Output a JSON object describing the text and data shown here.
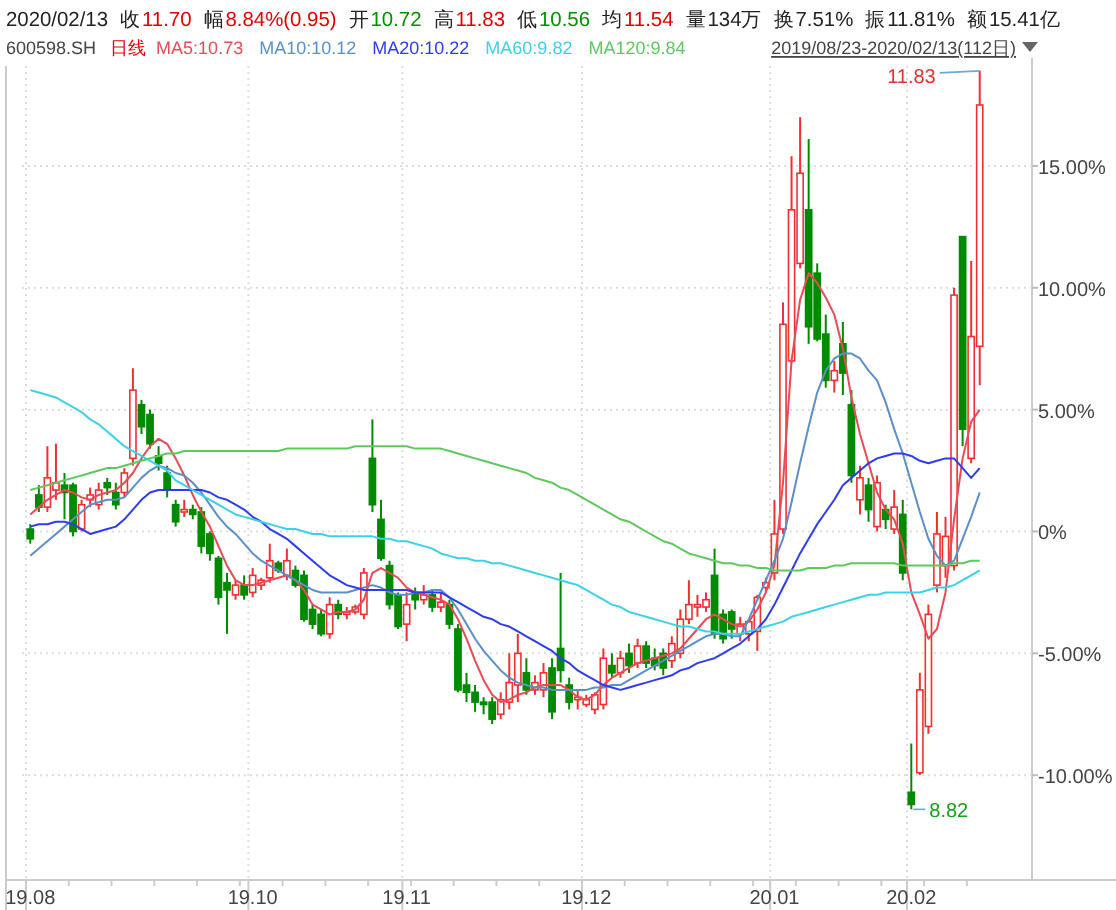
{
  "chart_data": {
    "type": "candlestick",
    "subtitle": "600598.SH",
    "legend_title": "日线",
    "legend": "top",
    "grid": true,
    "categories": [
      "19.08",
      null,
      null,
      null,
      null,
      null,
      null,
      null,
      null,
      null,
      null,
      null,
      null,
      null,
      null,
      null,
      null,
      null,
      null,
      null,
      null,
      null,
      null,
      null,
      null,
      null,
      "19.10",
      null,
      null,
      null,
      null,
      null,
      null,
      null,
      null,
      null,
      null,
      null,
      null,
      null,
      null,
      null,
      null,
      null,
      "19.11",
      null,
      null,
      null,
      null,
      null,
      null,
      null,
      null,
      null,
      null,
      null,
      null,
      null,
      null,
      null,
      null,
      null,
      null,
      null,
      null,
      "19.12",
      null,
      null,
      null,
      null,
      null,
      null,
      null,
      null,
      null,
      null,
      null,
      null,
      null,
      null,
      null,
      null,
      null,
      null,
      null,
      null,
      null,
      "20.01",
      null,
      null,
      null,
      null,
      null,
      null,
      null,
      null,
      null,
      null,
      null,
      null,
      null,
      null,
      null,
      "20.02",
      null,
      null,
      null,
      null,
      null,
      null,
      null,
      null
    ],
    "ohlc": [
      [
        0.1,
        0.3,
        -0.5,
        -0.3
      ],
      [
        1.5,
        1.9,
        0.8,
        1.0
      ],
      [
        1.0,
        3.5,
        0.8,
        2.2
      ],
      [
        1.7,
        3.6,
        1.3,
        2.0
      ],
      [
        1.9,
        2.4,
        0.5,
        1.6
      ],
      [
        1.9,
        2.0,
        -0.2,
        0.0
      ],
      [
        0.1,
        1.3,
        0.0,
        1.1
      ],
      [
        1.3,
        1.8,
        1.0,
        1.5
      ],
      [
        1.1,
        2.0,
        0.9,
        1.7
      ],
      [
        2.0,
        2.2,
        1.5,
        1.8
      ],
      [
        1.6,
        2.0,
        0.9,
        1.1
      ],
      [
        1.6,
        2.6,
        1.4,
        2.4
      ],
      [
        3.0,
        6.7,
        2.7,
        5.8
      ],
      [
        5.2,
        5.4,
        4.0,
        4.3
      ],
      [
        4.8,
        5.0,
        3.4,
        3.6
      ],
      [
        3.1,
        3.5,
        2.5,
        2.8
      ],
      [
        2.4,
        2.7,
        1.4,
        1.7
      ],
      [
        1.1,
        1.3,
        0.2,
        0.4
      ],
      [
        0.8,
        1.3,
        0.6,
        0.9
      ],
      [
        0.9,
        1.1,
        0.5,
        0.7
      ],
      [
        0.8,
        1.0,
        -0.9,
        -0.6
      ],
      [
        -0.1,
        0.0,
        -1.2,
        -0.9
      ],
      [
        -1.1,
        -1.0,
        -3.0,
        -2.7
      ],
      [
        -2.1,
        -1.7,
        -4.2,
        -2.4
      ],
      [
        -2.6,
        -2.0,
        -2.8,
        -2.2
      ],
      [
        -2.2,
        -1.8,
        -2.8,
        -2.6
      ],
      [
        -2.5,
        -1.5,
        -2.7,
        -1.8
      ],
      [
        -2.2,
        -1.9,
        -2.4,
        -2.0
      ],
      [
        -1.9,
        -0.5,
        -2.1,
        -1.2
      ],
      [
        -1.3,
        -1.2,
        -1.7,
        -1.6
      ],
      [
        -1.8,
        -0.7,
        -2.0,
        -1.2
      ],
      [
        -1.6,
        -1.4,
        -2.3,
        -2.2
      ],
      [
        -1.8,
        -1.6,
        -3.7,
        -3.6
      ],
      [
        -3.2,
        -3.0,
        -4.0,
        -3.8
      ],
      [
        -3.4,
        -3.2,
        -4.3,
        -4.2
      ],
      [
        -4.2,
        -2.7,
        -4.4,
        -3.0
      ],
      [
        -3.0,
        -2.8,
        -3.6,
        -3.4
      ],
      [
        -3.4,
        -3.1,
        -3.6,
        -3.3
      ],
      [
        -3.3,
        -3.0,
        -3.4,
        -3.1
      ],
      [
        -3.4,
        -1.5,
        -3.6,
        -1.7
      ],
      [
        3.0,
        4.6,
        0.8,
        1.1
      ],
      [
        0.5,
        1.3,
        -1.2,
        -1.1
      ],
      [
        -1.4,
        -1.2,
        -3.2,
        -3.0
      ],
      [
        -2.6,
        -2.5,
        -4.0,
        -3.9
      ],
      [
        -3.8,
        -2.5,
        -4.5,
        -3.0
      ],
      [
        -2.5,
        -2.3,
        -3.2,
        -2.8
      ],
      [
        -2.8,
        -2.2,
        -3.0,
        -2.6
      ],
      [
        -2.6,
        -2.4,
        -3.3,
        -3.1
      ],
      [
        -3.1,
        -2.5,
        -3.3,
        -2.9
      ],
      [
        -3.0,
        -2.8,
        -4.0,
        -3.8
      ],
      [
        -4.0,
        -3.8,
        -6.6,
        -6.5
      ],
      [
        -6.3,
        -5.8,
        -7.0,
        -6.6
      ],
      [
        -6.6,
        -6.3,
        -7.4,
        -7.0
      ],
      [
        -7.0,
        -6.8,
        -7.5,
        -7.1
      ],
      [
        -7.0,
        -6.8,
        -7.9,
        -7.7
      ],
      [
        -7.5,
        -6.6,
        -7.7,
        -6.9
      ],
      [
        -7.0,
        -5.0,
        -7.3,
        -6.2
      ],
      [
        -6.3,
        -4.2,
        -7.0,
        -5.0
      ],
      [
        -5.8,
        -5.2,
        -6.7,
        -6.5
      ],
      [
        -6.5,
        -5.9,
        -6.7,
        -6.2
      ],
      [
        -6.5,
        -5.4,
        -6.8,
        -5.8
      ],
      [
        -5.6,
        -5.2,
        -7.7,
        -7.4
      ],
      [
        -4.8,
        -1.7,
        -6.2,
        -5.7
      ],
      [
        -6.3,
        -6.0,
        -7.3,
        -7.0
      ],
      [
        -6.9,
        -6.5,
        -7.3,
        -6.8
      ],
      [
        -7.1,
        -6.7,
        -7.2,
        -6.9
      ],
      [
        -7.3,
        -6.6,
        -7.5,
        -6.7
      ],
      [
        -7.1,
        -4.8,
        -7.3,
        -5.2
      ],
      [
        -5.5,
        -5.0,
        -6.0,
        -5.8
      ],
      [
        -5.8,
        -4.9,
        -6.0,
        -5.2
      ],
      [
        -5.0,
        -4.6,
        -5.8,
        -5.5
      ],
      [
        -5.4,
        -4.4,
        -5.6,
        -4.7
      ],
      [
        -4.7,
        -4.5,
        -5.6,
        -5.4
      ],
      [
        -5.2,
        -4.8,
        -5.7,
        -5.5
      ],
      [
        -5.0,
        -4.8,
        -5.9,
        -5.6
      ],
      [
        -5.3,
        -4.3,
        -5.6,
        -4.6
      ],
      [
        -5.0,
        -3.2,
        -5.2,
        -3.6
      ],
      [
        -3.6,
        -2.0,
        -3.8,
        -3.0
      ],
      [
        -3.1,
        -2.6,
        -3.5,
        -3.0
      ],
      [
        -3.1,
        -2.5,
        -3.3,
        -2.8
      ],
      [
        -1.8,
        -0.7,
        -4.4,
        -4.2
      ],
      [
        -3.4,
        -3.2,
        -4.6,
        -4.4
      ],
      [
        -3.3,
        -3.2,
        -4.4,
        -4.0
      ],
      [
        -4.2,
        -3.5,
        -4.5,
        -3.8
      ],
      [
        -4.2,
        -3.6,
        -4.5,
        -3.7
      ],
      [
        -4.1,
        -2.6,
        -4.9,
        -2.7
      ],
      [
        -2.3,
        -1.9,
        -2.5,
        -2.1
      ],
      [
        -1.7,
        1.3,
        -2.0,
        -0.1
      ],
      [
        0.1,
        9.4,
        -0.1,
        8.5
      ],
      [
        7.0,
        15.4,
        6.9,
        13.2
      ],
      [
        11.0,
        17.0,
        10.8,
        14.7
      ],
      [
        13.2,
        16.1,
        7.7,
        8.4
      ],
      [
        10.6,
        11.0,
        7.8,
        7.9
      ],
      [
        8.1,
        8.9,
        5.9,
        6.2
      ],
      [
        6.2,
        7.0,
        5.7,
        6.6
      ],
      [
        7.7,
        8.6,
        5.6,
        6.5
      ],
      [
        5.2,
        5.8,
        2.0,
        2.3
      ],
      [
        1.3,
        2.7,
        0.7,
        2.2
      ],
      [
        1.9,
        2.2,
        0.4,
        0.9
      ],
      [
        0.2,
        2.3,
        0.0,
        2.0
      ],
      [
        0.9,
        1.1,
        0.1,
        0.5
      ],
      [
        0.1,
        1.7,
        -0.1,
        1.0
      ],
      [
        0.7,
        1.3,
        -2.0,
        -1.7
      ],
      [
        -10.7,
        -8.7,
        -11.4,
        -11.2
      ],
      [
        -9.9,
        -5.8,
        -10.0,
        -6.5
      ],
      [
        -8.0,
        -3.0,
        -8.3,
        -3.4
      ],
      [
        -2.2,
        0.8,
        -2.5,
        -0.1
      ],
      [
        -1.4,
        0.6,
        -1.9,
        -0.2
      ],
      [
        -1.4,
        10.0,
        -1.6,
        9.7
      ],
      [
        12.1,
        12.1,
        3.5,
        4.2
      ],
      [
        3.0,
        11.1,
        2.8,
        8.0
      ],
      [
        7.6,
        18.9,
        6.0,
        17.5
      ]
    ],
    "series": [
      {
        "type": "line",
        "name": "MA5:10.73",
        "color": "#ea4a55",
        "values": [
          0.7,
          1.0,
          1.3,
          1.5,
          1.7,
          1.6,
          1.4,
          1.3,
          1.5,
          1.6,
          1.7,
          2.0,
          2.4,
          3.0,
          3.5,
          3.8,
          3.6,
          3.0,
          2.3,
          1.5,
          0.8,
          0.2,
          -0.6,
          -1.4,
          -2.0,
          -2.2,
          -2.2,
          -2.1,
          -2.0,
          -1.9,
          -1.8,
          -2.0,
          -2.4,
          -3.0,
          -3.2,
          -3.4,
          -3.3,
          -3.3,
          -3.2,
          -2.8,
          -1.7,
          -1.5,
          -1.7,
          -1.9,
          -2.3,
          -2.5,
          -2.6,
          -2.7,
          -2.8,
          -3.0,
          -3.6,
          -4.4,
          -5.3,
          -6.1,
          -6.7,
          -7.0,
          -6.9,
          -6.7,
          -6.6,
          -6.4,
          -6.3,
          -6.3,
          -6.3,
          -6.5,
          -6.8,
          -6.9,
          -6.7,
          -6.3,
          -6.0,
          -5.8,
          -5.6,
          -5.4,
          -5.3,
          -5.2,
          -5.1,
          -5.0,
          -4.8,
          -4.4,
          -4.0,
          -3.6,
          -3.4,
          -3.6,
          -3.8,
          -3.9,
          -3.7,
          -3.2,
          -2.5,
          -1.4,
          2.0,
          7.0,
          9.5,
          10.6,
          10.2,
          9.6,
          8.9,
          7.5,
          5.5,
          4.0,
          2.8,
          1.6,
          0.9,
          0.5,
          -0.5,
          -2.5,
          -3.4,
          -4.4,
          -4.0,
          -2.5,
          0.5,
          3.0,
          4.5,
          5.0
        ]
      },
      {
        "type": "line",
        "name": "MA10:10.12",
        "color": "#5b8fc7",
        "values": [
          -1.0,
          -0.7,
          -0.4,
          -0.1,
          0.2,
          0.5,
          0.8,
          1.1,
          1.2,
          1.3,
          1.3,
          1.4,
          1.8,
          2.2,
          2.5,
          2.7,
          2.6,
          2.4,
          2.3,
          2.0,
          1.6,
          1.1,
          0.6,
          0.2,
          -0.1,
          -0.5,
          -0.9,
          -1.2,
          -1.4,
          -1.6,
          -1.8,
          -2.0,
          -2.2,
          -2.4,
          -2.5,
          -2.5,
          -2.5,
          -2.5,
          -2.4,
          -2.3,
          -2.2,
          -2.3,
          -2.5,
          -2.6,
          -2.6,
          -2.5,
          -2.5,
          -2.4,
          -2.4,
          -2.7,
          -3.2,
          -3.8,
          -4.4,
          -4.9,
          -5.3,
          -5.7,
          -6.0,
          -6.2,
          -6.3,
          -6.4,
          -6.4,
          -6.5,
          -6.5,
          -6.5,
          -6.5,
          -6.5,
          -6.4,
          -6.4,
          -6.3,
          -6.3,
          -6.1,
          -5.9,
          -5.7,
          -5.5,
          -5.3,
          -5.1,
          -4.9,
          -4.7,
          -4.5,
          -4.3,
          -4.2,
          -4.2,
          -4.3,
          -4.3,
          -3.6,
          -2.8,
          -2.0,
          -1.2,
          -0.3,
          1.2,
          2.8,
          4.3,
          5.7,
          6.6,
          7.1,
          7.3,
          7.3,
          7.1,
          6.6,
          6.2,
          5.3,
          4.2,
          3.2,
          2.0,
          0.8,
          -0.3,
          -1.0,
          -1.4,
          -1.2,
          -0.3,
          0.6,
          1.6
        ]
      },
      {
        "type": "line",
        "name": "MA20:10.22",
        "color": "#2d3cf0",
        "values": [
          0.2,
          0.3,
          0.3,
          0.4,
          0.4,
          0.3,
          0.1,
          -0.1,
          0.0,
          0.1,
          0.2,
          0.5,
          0.9,
          1.3,
          1.6,
          1.7,
          1.7,
          1.7,
          1.7,
          1.7,
          1.7,
          1.6,
          1.4,
          1.3,
          1.1,
          0.9,
          0.6,
          0.4,
          0.1,
          -0.1,
          -0.3,
          -0.6,
          -0.9,
          -1.2,
          -1.5,
          -1.8,
          -2.0,
          -2.2,
          -2.3,
          -2.4,
          -2.4,
          -2.4,
          -2.4,
          -2.4,
          -2.4,
          -2.5,
          -2.5,
          -2.5,
          -2.5,
          -2.7,
          -2.9,
          -3.1,
          -3.3,
          -3.5,
          -3.6,
          -3.8,
          -3.9,
          -4.1,
          -4.3,
          -4.5,
          -4.7,
          -4.9,
          -5.2,
          -5.4,
          -5.7,
          -5.9,
          -6.1,
          -6.3,
          -6.4,
          -6.5,
          -6.4,
          -6.3,
          -6.2,
          -6.1,
          -6.0,
          -5.9,
          -5.7,
          -5.6,
          -5.4,
          -5.3,
          -5.2,
          -5.0,
          -4.8,
          -4.6,
          -4.3,
          -4.0,
          -3.6,
          -3.0,
          -2.3,
          -1.6,
          -0.9,
          -0.3,
          0.3,
          0.8,
          1.3,
          1.9,
          2.2,
          2.5,
          2.8,
          3.0,
          3.1,
          3.2,
          3.2,
          3.1,
          2.9,
          2.8,
          2.9,
          3.0,
          3.0,
          2.6,
          2.2,
          2.6
        ]
      },
      {
        "type": "line",
        "name": "MA60:9.82",
        "color": "#3cd2e6",
        "values": [
          5.8,
          5.7,
          5.6,
          5.5,
          5.3,
          5.1,
          4.9,
          4.6,
          4.4,
          4.1,
          3.8,
          3.5,
          3.3,
          3.1,
          2.9,
          2.7,
          2.5,
          2.1,
          1.9,
          1.7,
          1.5,
          1.3,
          1.1,
          0.9,
          0.7,
          0.6,
          0.5,
          0.4,
          0.3,
          0.2,
          0.1,
          0.1,
          0.0,
          -0.1,
          -0.1,
          -0.2,
          -0.2,
          -0.2,
          -0.2,
          -0.2,
          -0.2,
          -0.3,
          -0.3,
          -0.4,
          -0.4,
          -0.5,
          -0.6,
          -0.7,
          -0.9,
          -1.0,
          -1.1,
          -1.1,
          -1.2,
          -1.2,
          -1.3,
          -1.3,
          -1.4,
          -1.5,
          -1.6,
          -1.7,
          -1.8,
          -1.9,
          -2.0,
          -2.1,
          -2.2,
          -2.4,
          -2.6,
          -2.8,
          -3.0,
          -3.1,
          -3.3,
          -3.4,
          -3.5,
          -3.6,
          -3.7,
          -3.8,
          -3.9,
          -3.9,
          -4.0,
          -4.1,
          -4.1,
          -4.2,
          -4.2,
          -4.2,
          -4.1,
          -4.0,
          -3.9,
          -3.8,
          -3.7,
          -3.5,
          -3.4,
          -3.3,
          -3.2,
          -3.1,
          -3.0,
          -2.9,
          -2.8,
          -2.7,
          -2.6,
          -2.6,
          -2.5,
          -2.5,
          -2.5,
          -2.5,
          -2.5,
          -2.4,
          -2.3,
          -2.3,
          -2.2,
          -2.0,
          -1.8,
          -1.6
        ]
      },
      {
        "type": "line",
        "name": "MA120:9.84",
        "color": "#5ec85e",
        "values": [
          1.7,
          1.8,
          1.9,
          2.0,
          2.1,
          2.2,
          2.3,
          2.4,
          2.5,
          2.6,
          2.6,
          2.7,
          2.8,
          2.9,
          3.0,
          3.1,
          3.2,
          3.2,
          3.3,
          3.3,
          3.3,
          3.3,
          3.3,
          3.3,
          3.3,
          3.3,
          3.3,
          3.3,
          3.3,
          3.3,
          3.4,
          3.4,
          3.4,
          3.4,
          3.4,
          3.4,
          3.4,
          3.4,
          3.5,
          3.5,
          3.5,
          3.5,
          3.5,
          3.5,
          3.5,
          3.4,
          3.4,
          3.4,
          3.4,
          3.3,
          3.2,
          3.1,
          3.0,
          2.9,
          2.8,
          2.7,
          2.6,
          2.5,
          2.4,
          2.2,
          2.1,
          2.0,
          1.8,
          1.7,
          1.5,
          1.3,
          1.1,
          0.9,
          0.7,
          0.5,
          0.4,
          0.2,
          0.0,
          -0.2,
          -0.4,
          -0.5,
          -0.7,
          -0.9,
          -1.0,
          -1.1,
          -1.2,
          -1.3,
          -1.3,
          -1.4,
          -1.4,
          -1.5,
          -1.5,
          -1.6,
          -1.6,
          -1.6,
          -1.6,
          -1.5,
          -1.5,
          -1.5,
          -1.4,
          -1.4,
          -1.3,
          -1.3,
          -1.3,
          -1.3,
          -1.3,
          -1.3,
          -1.4,
          -1.4,
          -1.4,
          -1.4,
          -1.4,
          -1.4,
          -1.3,
          -1.3,
          -1.2,
          -1.2
        ]
      }
    ],
    "ylim": [
      -14.3,
      19.1
    ],
    "yticks": [
      {
        "value": 15,
        "label": "15.00%"
      },
      {
        "value": 10,
        "label": "10.00%"
      },
      {
        "value": 5,
        "label": "5.00%"
      },
      {
        "value": 0,
        "label": "0%"
      },
      {
        "value": -5,
        "label": "-5.00%"
      },
      {
        "value": -10,
        "label": "-10.00%"
      }
    ],
    "annotations": [
      "2020/02/13",
      "收",
      "11.70",
      "幅",
      "8.84%(0.95)",
      "开",
      "10.72",
      "高",
      "11.83",
      "低",
      "10.56",
      "均",
      "11.54",
      "量",
      "134万",
      "换",
      "7.51%",
      "振",
      "11.81%",
      "额",
      "15.41亿",
      "2019/08/23-2020/02/13(112日)",
      "11.83",
      "8.82"
    ]
  }
}
